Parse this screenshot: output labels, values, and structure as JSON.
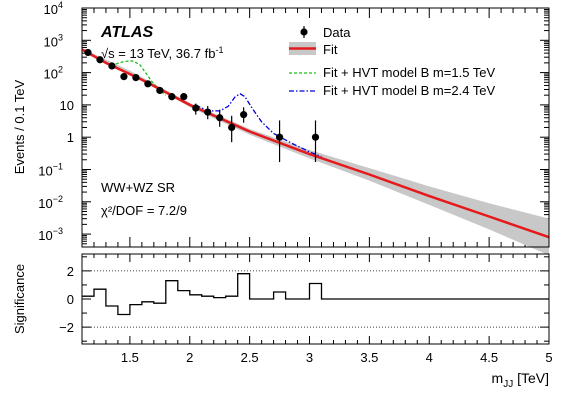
{
  "chart_data": [
    {
      "type": "scatter",
      "experiment": "ATLAS",
      "energy_label": "√s = 13 TeV, 36.7 fb",
      "lumi_superscript": "-1",
      "region_label": "WW+WZ SR",
      "chi2_label": "χ²/DOF = 7.2/9",
      "ylabel": "Events / 0.1 TeV",
      "yscale": "log",
      "ylim_exp": [
        -3.4,
        4
      ],
      "y_tick_labels": [
        {
          "exp": 4,
          "base": "10",
          "sup": "4"
        },
        {
          "exp": 3,
          "base": "10",
          "sup": "3"
        },
        {
          "exp": 2,
          "base": "10",
          "sup": "2"
        },
        {
          "exp": 1,
          "base": "10",
          "sup": ""
        },
        {
          "exp": 0,
          "base": "1",
          "sup": ""
        },
        {
          "exp": -1,
          "base": "10",
          "sup": "−1"
        },
        {
          "exp": -2,
          "base": "10",
          "sup": "−2"
        },
        {
          "exp": -3,
          "base": "10",
          "sup": "−3"
        }
      ],
      "xlim": [
        1.1,
        5.0
      ],
      "legend_position": "top-right",
      "legend": [
        {
          "key": "data",
          "label": "Data"
        },
        {
          "key": "fit",
          "label": "Fit"
        },
        {
          "key": "hvt15",
          "label": "Fit + HVT model B m=1.5 TeV"
        },
        {
          "key": "hvt24",
          "label": "Fit + HVT model B m=2.4 TeV"
        }
      ],
      "colors": {
        "fit": "#e41a1c",
        "band": "#c8c8c8",
        "hvt15": "#1fbf1f",
        "hvt24": "#0000dd",
        "data": "#000000"
      },
      "data_points": [
        {
          "x": 1.15,
          "y": 420,
          "err_lo": 20,
          "err_hi": 21
        },
        {
          "x": 1.25,
          "y": 250,
          "err_lo": 16,
          "err_hi": 16
        },
        {
          "x": 1.35,
          "y": 160,
          "err_lo": 13,
          "err_hi": 13
        },
        {
          "x": 1.45,
          "y": 75,
          "err_lo": 9,
          "err_hi": 9
        },
        {
          "x": 1.55,
          "y": 70,
          "err_lo": 8,
          "err_hi": 8
        },
        {
          "x": 1.65,
          "y": 45,
          "err_lo": 7,
          "err_hi": 7
        },
        {
          "x": 1.75,
          "y": 28,
          "err_lo": 5,
          "err_hi": 6
        },
        {
          "x": 1.85,
          "y": 18,
          "err_lo": 4,
          "err_hi": 5
        },
        {
          "x": 1.95,
          "y": 18,
          "err_lo": 4,
          "err_hi": 5
        },
        {
          "x": 2.05,
          "y": 8,
          "err_lo": 3,
          "err_hi": 3
        },
        {
          "x": 2.15,
          "y": 6,
          "err_lo": 2.4,
          "err_hi": 3.3
        },
        {
          "x": 2.25,
          "y": 4,
          "err_lo": 1.9,
          "err_hi": 3.1
        },
        {
          "x": 2.35,
          "y": 2,
          "err_lo": 1.3,
          "err_hi": 2.6
        },
        {
          "x": 2.45,
          "y": 5,
          "err_lo": 2.2,
          "err_hi": 3.4
        },
        {
          "x": 2.75,
          "y": 1,
          "err_lo": 0.83,
          "err_hi": 2.3
        },
        {
          "x": 3.05,
          "y": 1,
          "err_lo": 0.83,
          "err_hi": 2.3
        }
      ],
      "fit_curve": {
        "x": [
          1.1,
          1.3,
          1.6,
          2.0,
          2.5,
          3.0,
          3.5,
          4.0,
          4.5,
          5.0
        ],
        "y": [
          520,
          200,
          60,
          10,
          1.5,
          0.3,
          0.07,
          0.015,
          0.0035,
          0.0008
        ]
      },
      "band_upper": {
        "x": [
          1.1,
          1.5,
          2.0,
          2.5,
          3.0,
          3.5,
          4.0,
          4.5,
          5.0
        ],
        "y": [
          560,
          115,
          11.5,
          1.8,
          0.4,
          0.11,
          0.03,
          0.009,
          0.003
        ]
      },
      "band_lower": {
        "x": [
          1.1,
          1.5,
          2.0,
          2.5,
          3.0,
          3.5,
          4.0,
          4.5,
          5.0
        ],
        "y": [
          480,
          95,
          8.5,
          1.2,
          0.22,
          0.045,
          0.008,
          0.0014,
          0.00022
        ]
      },
      "hvt15_curve": {
        "x": [
          1.3,
          1.38,
          1.45,
          1.52,
          1.58,
          1.63,
          1.68,
          1.74,
          1.8
        ],
        "y": [
          200,
          185,
          220,
          230,
          180,
          100,
          55,
          30,
          20
        ]
      },
      "hvt24_curve": {
        "x": [
          2.05,
          2.15,
          2.25,
          2.32,
          2.38,
          2.42,
          2.46,
          2.52,
          2.6,
          2.7,
          2.85,
          3.0,
          3.1
        ],
        "y": [
          10,
          6.5,
          6.5,
          9,
          18,
          22,
          18,
          8,
          3,
          1.3,
          0.65,
          0.35,
          0.25
        ]
      }
    },
    {
      "type": "bar",
      "ylabel": "Significance",
      "xlabel": "m",
      "xlabel_sub": "JJ",
      "xlabel_unit": " [TeV]",
      "ylim": [
        -3.2,
        3.2
      ],
      "y_ticks": [
        -2,
        0,
        2
      ],
      "y_tick_labels": [
        "−2",
        "0",
        "2"
      ],
      "dotted_lines": [
        -2,
        2
      ],
      "xlim": [
        1.1,
        5.0
      ],
      "x_ticks": [
        1.5,
        2,
        2.5,
        3,
        3.5,
        4,
        4.5,
        5
      ],
      "x_tick_labels": [
        "1.5",
        "2",
        "2.5",
        "3",
        "3.5",
        "4",
        "4.5",
        "5"
      ],
      "bin_edges": [
        1.1,
        1.2,
        1.3,
        1.4,
        1.5,
        1.6,
        1.7,
        1.8,
        1.9,
        2.0,
        2.1,
        2.2,
        2.3,
        2.4,
        2.5,
        2.7,
        2.8,
        3.0,
        3.1,
        5.0
      ],
      "values": [
        0.2,
        0.7,
        -0.5,
        -1.1,
        -0.4,
        -0.2,
        -0.3,
        1.3,
        0.6,
        0.3,
        0.2,
        0.1,
        0.2,
        1.8,
        0.0,
        0.5,
        0.0,
        1.1,
        0.0
      ]
    }
  ]
}
